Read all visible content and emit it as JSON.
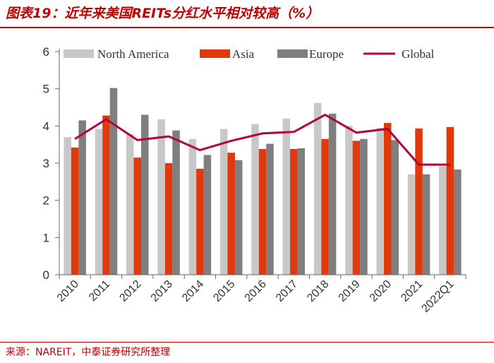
{
  "header": {
    "figure_title": "图表19：近年来美国REITs分红水平相对较高（%）"
  },
  "footer": {
    "source": "来源：NAREIT，中泰证券研究所整理"
  },
  "colors": {
    "title_red": "#c00000",
    "north_america": "#c8c8c8",
    "asia": "#e03a0c",
    "europe": "#7f7f7f",
    "global": "#b0063a"
  },
  "chart_data": {
    "type": "bar",
    "categories": [
      "2010",
      "2011",
      "2012",
      "2013",
      "2014",
      "2015",
      "2016",
      "2017",
      "2018",
      "2019",
      "2020",
      "2021",
      "2022Q1"
    ],
    "series": [
      {
        "name": "North America",
        "type": "bar",
        "color": "#c8c8c8",
        "values": [
          3.7,
          3.92,
          3.78,
          4.18,
          3.65,
          3.92,
          4.05,
          4.2,
          4.62,
          4.0,
          3.95,
          2.7,
          2.92
        ]
      },
      {
        "name": "Asia",
        "type": "bar",
        "color": "#e03a0c",
        "values": [
          3.42,
          4.28,
          3.15,
          3.0,
          2.85,
          3.28,
          3.38,
          3.38,
          3.65,
          3.6,
          4.08,
          3.93,
          3.97
        ]
      },
      {
        "name": "Europe",
        "type": "bar",
        "color": "#7f7f7f",
        "values": [
          4.15,
          5.02,
          4.3,
          3.88,
          3.22,
          3.08,
          3.52,
          3.4,
          4.33,
          3.65,
          3.62,
          2.7,
          2.83
        ]
      },
      {
        "name": "Global",
        "type": "line",
        "color": "#b0063a",
        "values": [
          3.65,
          4.18,
          3.62,
          3.72,
          3.35,
          3.6,
          3.8,
          3.84,
          4.3,
          3.82,
          3.92,
          2.96,
          2.96
        ]
      }
    ],
    "ylim": [
      0,
      6
    ],
    "yticks": [
      0,
      1,
      2,
      3,
      4,
      5,
      6
    ],
    "xlabel": "",
    "ylabel": "",
    "grid": false,
    "legend_position": "top"
  }
}
